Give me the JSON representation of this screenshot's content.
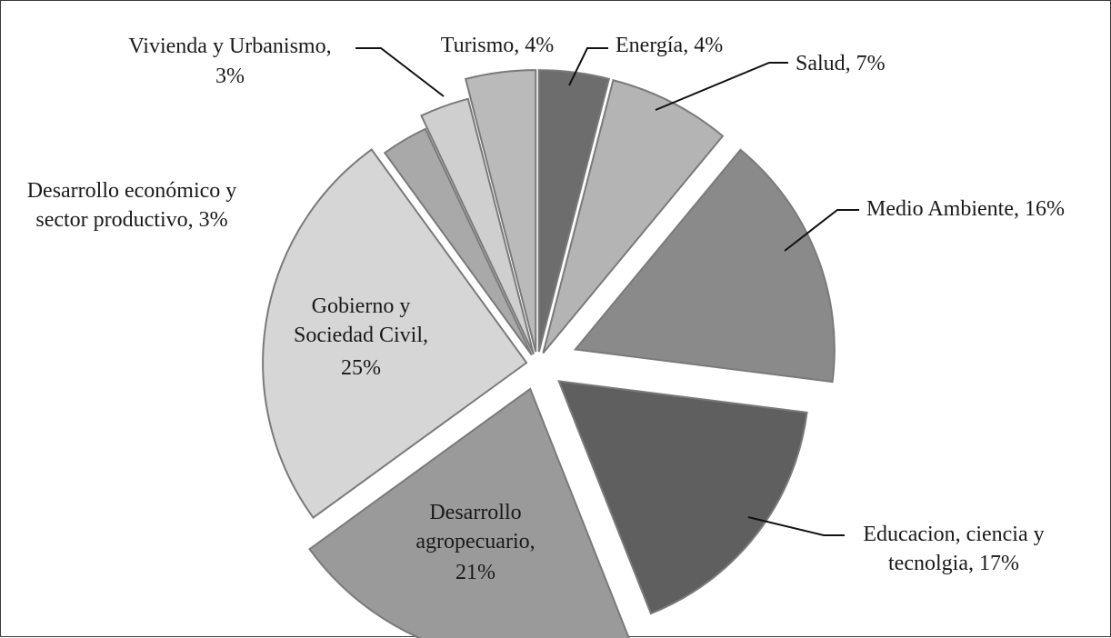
{
  "chart_data": {
    "type": "pie",
    "title": "",
    "exploded": true,
    "legend": "none",
    "slices": [
      {
        "label_lines": [
          "Energía, 4%"
        ],
        "value": 4,
        "color": "#6d6d6d"
      },
      {
        "label_lines": [
          "Salud, 7%"
        ],
        "value": 7,
        "color": "#b4b4b4"
      },
      {
        "label_lines": [
          "Medio Ambiente, 16%"
        ],
        "value": 16,
        "color": "#8a8a8a"
      },
      {
        "label_lines": [
          "Educacion, ciencia y",
          "tecnolgia, 17%"
        ],
        "value": 17,
        "color": "#5f5f5f"
      },
      {
        "label_lines": [
          "Desarrollo",
          "agropecuario,",
          "21%"
        ],
        "value": 21,
        "color": "#9a9a9a"
      },
      {
        "label_lines": [
          "Gobierno y",
          "Sociedad Civil,",
          "25%"
        ],
        "value": 25,
        "color": "#d6d6d6"
      },
      {
        "label_lines": [
          "Desarrollo económico y",
          "sector productivo, 3%"
        ],
        "value": 3,
        "color": "#a9a9a9"
      },
      {
        "label_lines": [
          "Vivienda y Urbanismo,",
          "3%"
        ],
        "value": 3,
        "color": "#cfcfcf"
      },
      {
        "label_lines": [
          "Turismo, 4%"
        ],
        "value": 4,
        "color": "#bababa"
      }
    ]
  }
}
